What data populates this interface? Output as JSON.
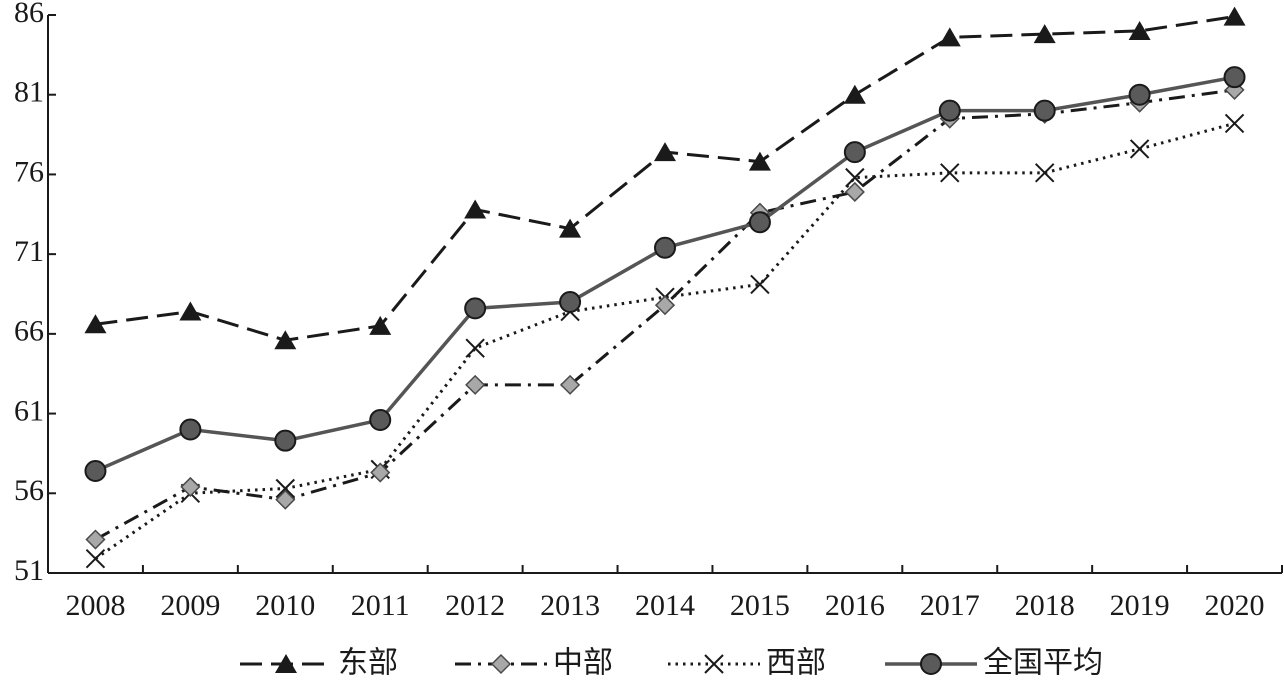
{
  "chart_data": {
    "type": "line",
    "title": "",
    "xlabel": "",
    "ylabel": "",
    "categories": [
      "2008",
      "2009",
      "2010",
      "2011",
      "2012",
      "2013",
      "2014",
      "2015",
      "2016",
      "2017",
      "2018",
      "2019",
      "2020"
    ],
    "ylim": [
      51,
      86
    ],
    "yticks": [
      51,
      56,
      61,
      66,
      71,
      76,
      81,
      86
    ],
    "grid": false,
    "legend_position": "bottom",
    "series": [
      {
        "name": "东部",
        "marker": "triangle",
        "line_style": "dashed",
        "color": "#1a1a1a",
        "values": [
          66.6,
          67.4,
          65.6,
          66.5,
          73.8,
          72.6,
          77.4,
          76.8,
          81.0,
          84.6,
          84.8,
          85.0,
          85.9
        ]
      },
      {
        "name": "中部",
        "marker": "diamond",
        "line_style": "dash-dot",
        "color": "#1a1a1a",
        "values": [
          53.1,
          56.4,
          55.6,
          57.3,
          62.8,
          62.8,
          67.8,
          73.6,
          74.9,
          79.5,
          79.8,
          80.5,
          81.3
        ]
      },
      {
        "name": "西部",
        "marker": "x",
        "line_style": "dotted",
        "color": "#1a1a1a",
        "values": [
          51.9,
          56.0,
          56.3,
          57.5,
          65.1,
          67.4,
          68.3,
          69.1,
          75.8,
          76.1,
          76.1,
          77.6,
          79.2
        ]
      },
      {
        "name": "全国平均",
        "marker": "circle",
        "line_style": "solid",
        "color": "#555555",
        "values": [
          57.4,
          60.0,
          59.3,
          60.6,
          67.6,
          68.0,
          71.4,
          73.0,
          77.4,
          80.0,
          80.0,
          81.0,
          82.1
        ]
      }
    ]
  }
}
